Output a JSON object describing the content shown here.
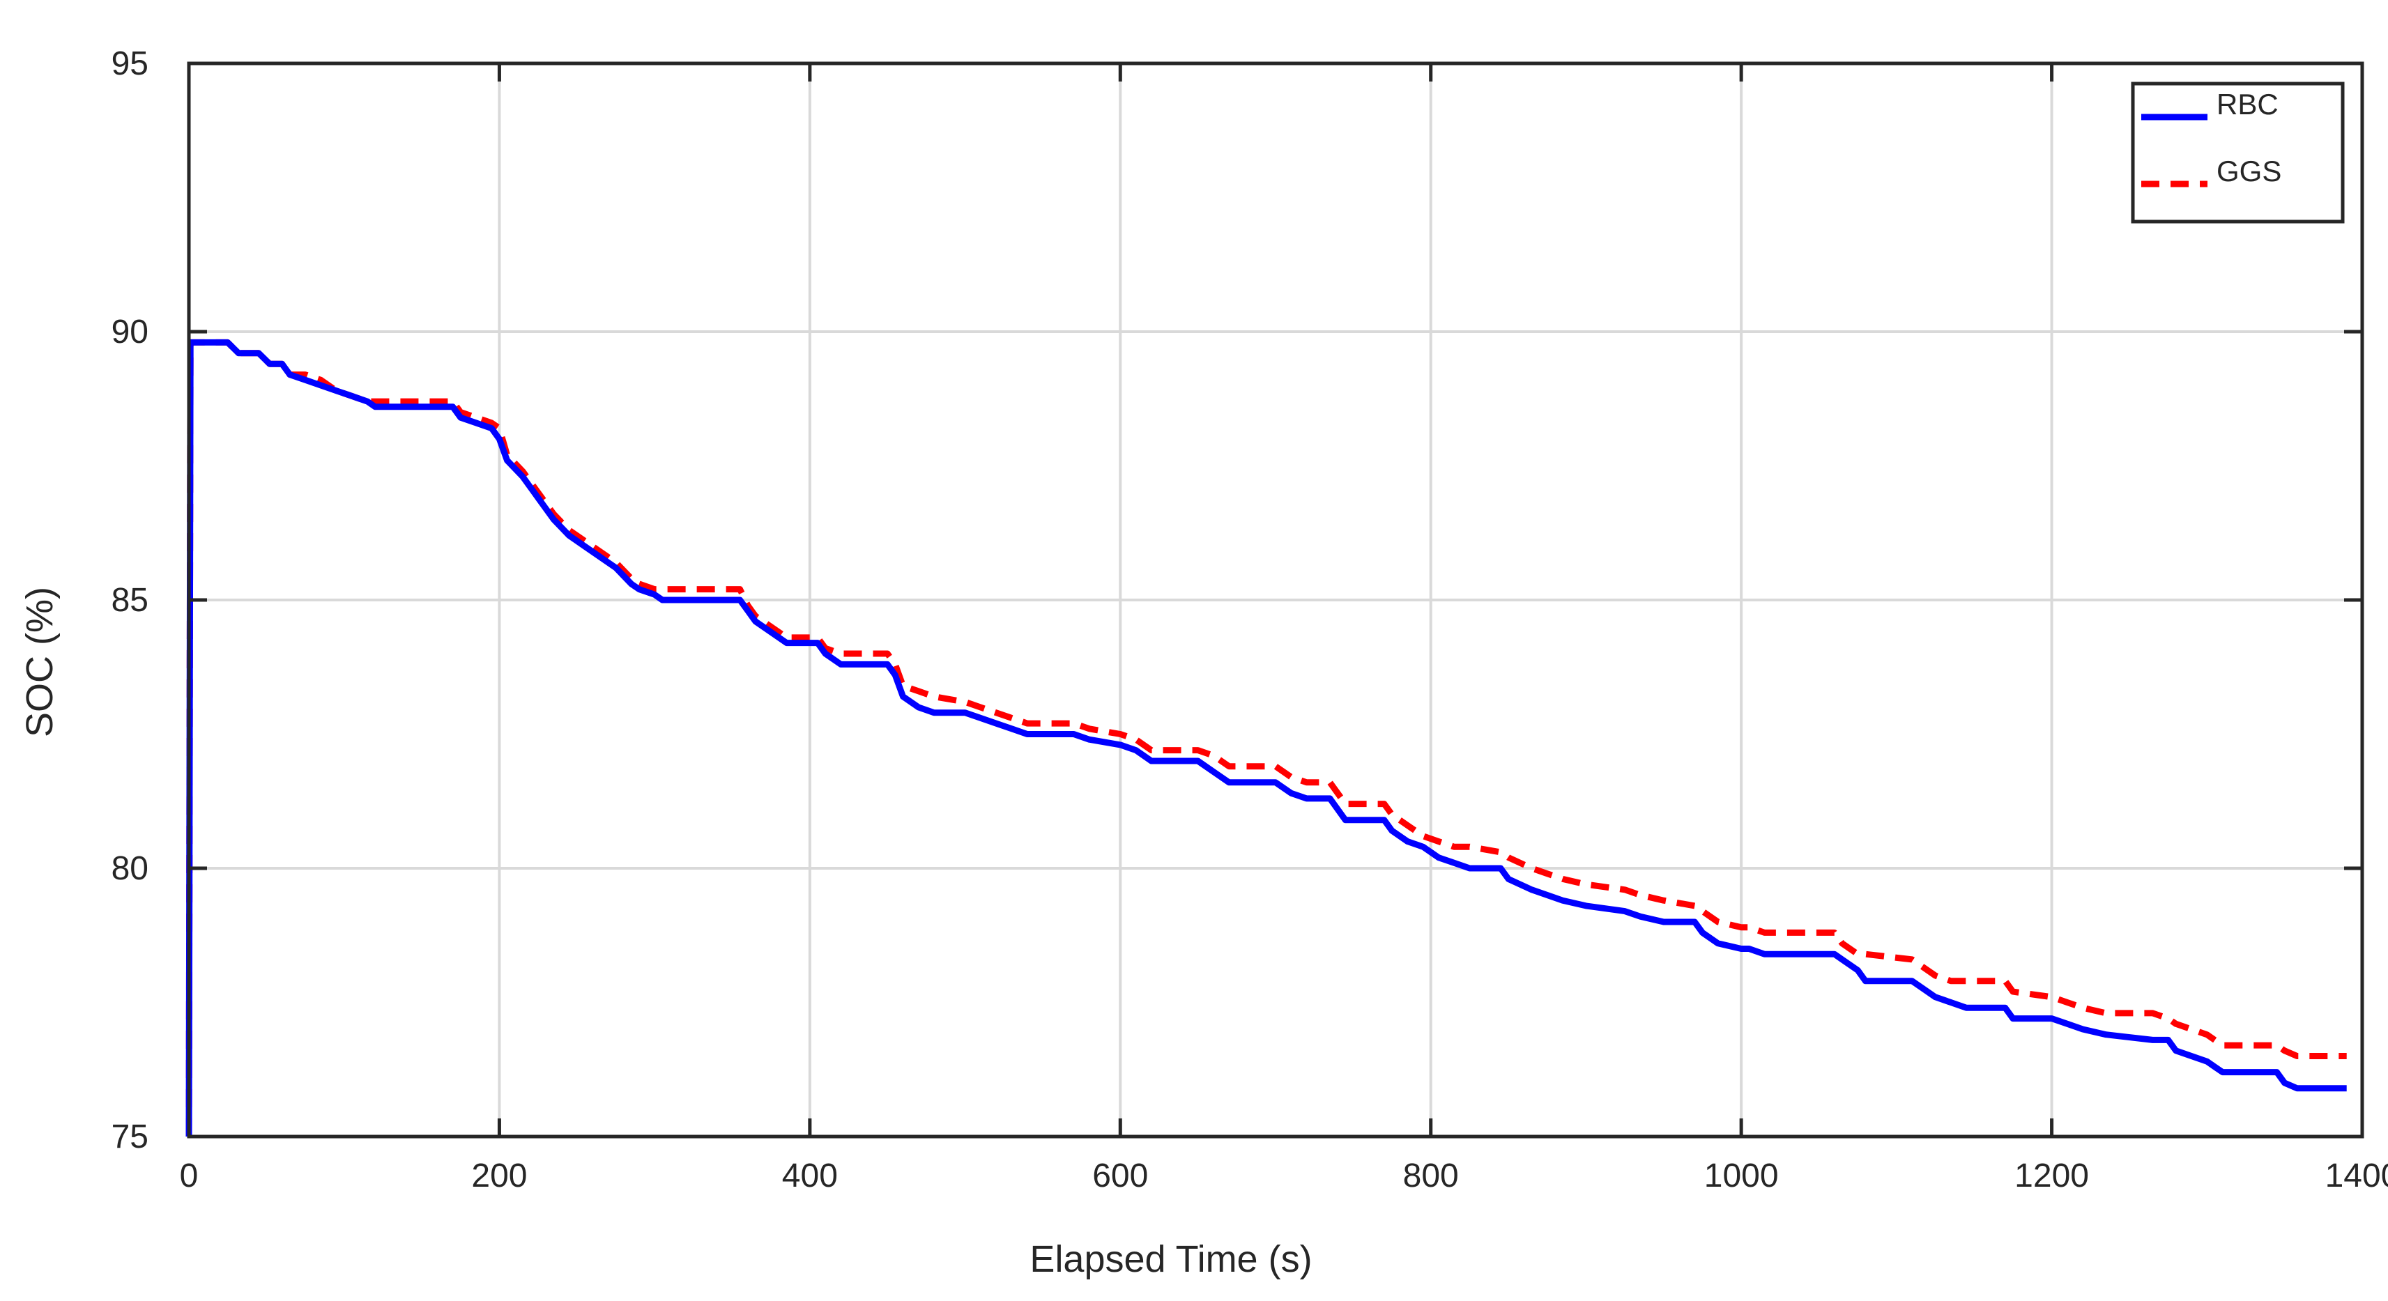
{
  "chart_data": {
    "type": "line",
    "title": "",
    "xlabel": "Elapsed Time (s)",
    "ylabel": "SOC (%)",
    "xlim": [
      0,
      1400
    ],
    "ylim": [
      75,
      95
    ],
    "xticks": [
      0,
      200,
      400,
      600,
      800,
      1000,
      1200,
      1400
    ],
    "yticks": [
      75,
      80,
      85,
      90,
      95
    ],
    "grid": true,
    "legend_position": "top-right",
    "series": [
      {
        "name": "RBC",
        "color": "#0000ff",
        "style": "solid",
        "x": [
          0,
          1,
          2,
          25,
          32,
          45,
          52,
          60,
          65,
          75,
          85,
          95,
          105,
          115,
          120,
          170,
          175,
          185,
          195,
          200,
          205,
          215,
          225,
          235,
          245,
          255,
          265,
          275,
          285,
          290,
          300,
          305,
          355,
          360,
          365,
          375,
          385,
          405,
          410,
          420,
          450,
          455,
          460,
          470,
          480,
          500,
          520,
          530,
          540,
          570,
          580,
          600,
          610,
          620,
          650,
          660,
          670,
          700,
          710,
          720,
          735,
          745,
          770,
          775,
          785,
          795,
          805,
          815,
          825,
          845,
          850,
          865,
          875,
          885,
          900,
          925,
          935,
          950,
          970,
          975,
          985,
          1000,
          1005,
          1015,
          1060,
          1065,
          1075,
          1080,
          1110,
          1115,
          1125,
          1135,
          1145,
          1170,
          1175,
          1200,
          1210,
          1220,
          1235,
          1265,
          1275,
          1280,
          1290,
          1300,
          1305,
          1310,
          1345,
          1350,
          1358,
          1370,
          1390
        ],
        "y": [
          75,
          89.8,
          89.8,
          89.8,
          89.6,
          89.6,
          89.4,
          89.4,
          89.2,
          89.1,
          89.0,
          88.9,
          88.8,
          88.7,
          88.6,
          88.6,
          88.4,
          88.3,
          88.2,
          88.0,
          87.6,
          87.3,
          86.9,
          86.5,
          86.2,
          86.0,
          85.8,
          85.6,
          85.3,
          85.2,
          85.1,
          85.0,
          85.0,
          84.8,
          84.6,
          84.4,
          84.2,
          84.2,
          84.0,
          83.8,
          83.8,
          83.6,
          83.2,
          83.0,
          82.9,
          82.9,
          82.7,
          82.6,
          82.5,
          82.5,
          82.4,
          82.3,
          82.2,
          82.0,
          82.0,
          81.8,
          81.6,
          81.6,
          81.4,
          81.3,
          81.3,
          80.9,
          80.9,
          80.7,
          80.5,
          80.4,
          80.2,
          80.1,
          80.0,
          80.0,
          79.8,
          79.6,
          79.5,
          79.4,
          79.3,
          79.2,
          79.1,
          79.0,
          79.0,
          78.8,
          78.6,
          78.5,
          78.5,
          78.4,
          78.4,
          78.3,
          78.1,
          77.9,
          77.9,
          77.8,
          77.6,
          77.5,
          77.4,
          77.4,
          77.2,
          77.2,
          77.1,
          77.0,
          76.9,
          76.8,
          76.8,
          76.6,
          76.5,
          76.4,
          76.3,
          76.2,
          76.2,
          76.0,
          75.9,
          75.9,
          75.9
        ]
      },
      {
        "name": "GGS",
        "color": "#ff0000",
        "style": "dashed",
        "x": [
          0,
          1,
          2,
          25,
          32,
          45,
          52,
          60,
          65,
          75,
          85,
          95,
          105,
          115,
          120,
          170,
          175,
          185,
          195,
          200,
          205,
          215,
          225,
          235,
          245,
          255,
          265,
          275,
          285,
          290,
          300,
          305,
          355,
          360,
          365,
          375,
          385,
          405,
          410,
          420,
          450,
          455,
          460,
          470,
          480,
          500,
          520,
          530,
          540,
          570,
          580,
          600,
          610,
          620,
          650,
          660,
          670,
          700,
          710,
          720,
          735,
          745,
          770,
          775,
          785,
          795,
          805,
          815,
          825,
          845,
          850,
          865,
          875,
          885,
          900,
          925,
          935,
          950,
          970,
          975,
          985,
          1000,
          1005,
          1015,
          1060,
          1065,
          1075,
          1080,
          1110,
          1115,
          1125,
          1135,
          1145,
          1170,
          1175,
          1200,
          1210,
          1220,
          1235,
          1265,
          1275,
          1280,
          1290,
          1300,
          1305,
          1310,
          1345,
          1350,
          1358,
          1370,
          1390
        ],
        "y": [
          75,
          89.8,
          89.8,
          89.8,
          89.6,
          89.6,
          89.4,
          89.4,
          89.2,
          89.2,
          89.1,
          88.9,
          88.8,
          88.7,
          88.7,
          88.7,
          88.5,
          88.4,
          88.3,
          88.2,
          87.7,
          87.4,
          87.0,
          86.6,
          86.3,
          86.1,
          85.9,
          85.7,
          85.4,
          85.3,
          85.2,
          85.2,
          85.2,
          84.9,
          84.7,
          84.5,
          84.3,
          84.3,
          84.1,
          84.0,
          84.0,
          83.8,
          83.4,
          83.3,
          83.2,
          83.1,
          82.9,
          82.8,
          82.7,
          82.7,
          82.6,
          82.5,
          82.4,
          82.2,
          82.2,
          82.1,
          81.9,
          81.9,
          81.7,
          81.6,
          81.6,
          81.2,
          81.2,
          81.0,
          80.8,
          80.6,
          80.5,
          80.4,
          80.4,
          80.3,
          80.2,
          80.0,
          79.9,
          79.8,
          79.7,
          79.6,
          79.5,
          79.4,
          79.3,
          79.2,
          79.0,
          78.9,
          78.9,
          78.8,
          78.8,
          78.6,
          78.4,
          78.4,
          78.3,
          78.2,
          78.0,
          77.9,
          77.9,
          77.9,
          77.7,
          77.6,
          77.5,
          77.4,
          77.3,
          77.3,
          77.2,
          77.1,
          77.0,
          76.9,
          76.8,
          76.7,
          76.7,
          76.6,
          76.5,
          76.5,
          76.5
        ]
      }
    ]
  }
}
